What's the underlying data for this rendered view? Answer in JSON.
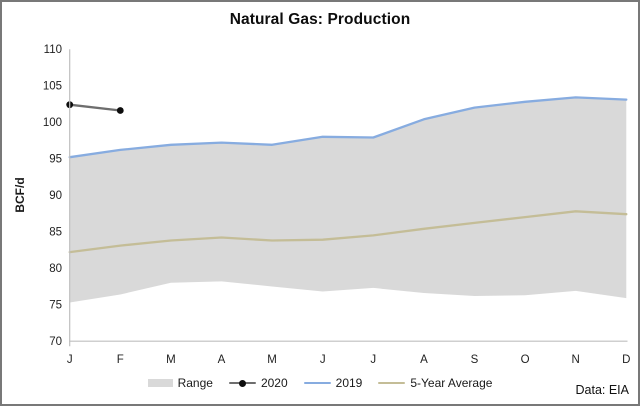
{
  "chart_data": {
    "type": "line",
    "title": "Natural Gas: Production",
    "ylabel": "BCF/d",
    "xlabel": "",
    "source": "Data: EIA",
    "ylim": [
      70,
      110
    ],
    "yticks": [
      110,
      105,
      100,
      95,
      90,
      85,
      80,
      75,
      70
    ],
    "categories": [
      "J",
      "F",
      "M",
      "A",
      "M",
      "J",
      "J",
      "A",
      "S",
      "O",
      "N",
      "D"
    ],
    "grid": false,
    "legend_position": "bottom",
    "band": {
      "name": "Range",
      "color": "#d9d9d9",
      "min": [
        75.3,
        76.4,
        78.0,
        78.2,
        77.5,
        76.8,
        77.3,
        76.6,
        76.2,
        76.3,
        76.9,
        75.9
      ],
      "max": [
        95.2,
        96.2,
        96.9,
        97.2,
        96.9,
        98.0,
        97.9,
        100.4,
        102.0,
        102.8,
        103.4,
        103.1
      ]
    },
    "series": [
      {
        "name": "2020",
        "color": "#6e6e6e",
        "marker_color": "#0d0d0d",
        "marker": true,
        "values": [
          102.4,
          101.6,
          null,
          null,
          null,
          null,
          null,
          null,
          null,
          null,
          null,
          null
        ]
      },
      {
        "name": "2019",
        "color": "#87ace0",
        "marker": false,
        "values": [
          95.2,
          96.2,
          96.9,
          97.2,
          96.9,
          98.0,
          97.9,
          100.4,
          102.0,
          102.8,
          103.4,
          103.1
        ]
      },
      {
        "name": "5-Year Average",
        "color": "#c4bd97",
        "marker": false,
        "values": [
          82.2,
          83.1,
          83.8,
          84.2,
          83.8,
          83.9,
          84.5,
          85.4,
          86.2,
          87.0,
          87.8,
          87.4
        ]
      }
    ],
    "colors": {
      "axis": "#bfbfbf",
      "tick_text": "#1f1f1f",
      "background": "#ffffff",
      "border": "#787878"
    }
  }
}
